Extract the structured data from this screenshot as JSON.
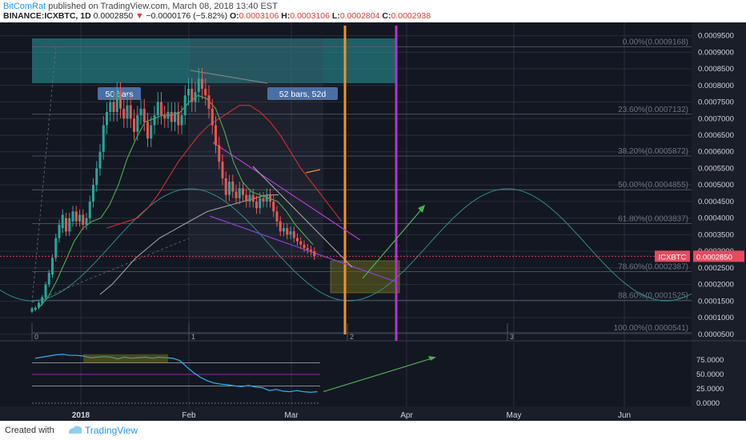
{
  "header": {
    "author": "BitComRat",
    "published": "published on TradingView.com, March 08, 2018 13:40 EST",
    "symbol": "BINANCE:ICXBTC, 1D",
    "last": "0.0002850",
    "change": "−0.0000176 (−5.82%)",
    "open_label": "O:",
    "open": "0.0003106",
    "high_label": "H:",
    "high": "0.0003106",
    "low_label": "L:",
    "low": "0.0002804",
    "close_label": "C:",
    "close": "0.0002938"
  },
  "footer": {
    "created_with": "Created with",
    "brand": "TradingView"
  },
  "colors": {
    "background": "#131722",
    "grid": "#2a2e39",
    "up": "#26a69a",
    "down": "#ef5350",
    "orange": "#f0932b",
    "magenta": "#b336c9",
    "teal_zone": "#2a9a9f",
    "price_tag": "#e84a5f"
  },
  "chart_data": [
    {
      "type": "line",
      "symbol": "ICXBTC",
      "x_ticks": [
        "2018",
        "Feb",
        "Mar",
        "Apr",
        "May",
        "Jun"
      ],
      "y_ticks": [
        "0.0009500",
        "0.0009000",
        "0.0008500",
        "0.0008000",
        "0.0007500",
        "0.0007000",
        "0.0006500",
        "0.0006000",
        "0.0005500",
        "0.0005000",
        "0.0004500",
        "0.0004000",
        "0.0003500",
        "0.0003000",
        "0.0002500",
        "0.0002000",
        "0.0001500",
        "0.0001000",
        "0.0000500"
      ],
      "ylim": [
        3.5e-05,
        0.00099
      ],
      "fibonacci": [
        {
          "label": "0.00%(0.0009168)",
          "value": 0.0009168
        },
        {
          "label": "23.60%(0.0007132)",
          "value": 0.0007132
        },
        {
          "label": "38.20%(0.0005872)",
          "value": 0.0005872
        },
        {
          "label": "50.00%(0.0004855)",
          "value": 0.0004855
        },
        {
          "label": "61.80%(0.0003837)",
          "value": 0.0003837
        },
        {
          "label": "78.60%(0.0002387)",
          "value": 0.0002387
        },
        {
          "label": "88.60%(0.0001525)",
          "value": 0.0001525
        },
        {
          "label": "100.00%(0.0000541)",
          "value": 5.41e-05
        }
      ],
      "annotations": [
        "50 bars",
        "52 bars, 52d"
      ],
      "cycle_labels": [
        "0",
        "1",
        "2",
        "3"
      ],
      "last_price_label": "ICXBTC",
      "last_price": "0.0002850",
      "last_price_value": 0.000285,
      "candles": [
        [
          0.000118,
          0.000128
        ],
        [
          0.000124,
          0.00013
        ],
        [
          0.00013,
          0.000145
        ],
        [
          0.000142,
          0.000162
        ],
        [
          0.00016,
          0.0002
        ],
        [
          0.0002,
          0.000235
        ],
        [
          0.00023,
          0.00028
        ],
        [
          0.00028,
          0.00034
        ],
        [
          0.00034,
          0.00038
        ],
        [
          0.00037,
          0.00041
        ],
        [
          0.0004,
          0.00036
        ],
        [
          0.00036,
          0.0004
        ],
        [
          0.00039,
          0.00042
        ],
        [
          0.00042,
          0.00039
        ],
        [
          0.00039,
          0.00041
        ],
        [
          0.00041,
          0.00038
        ],
        [
          0.00038,
          0.0004
        ],
        [
          0.0004,
          0.00045
        ],
        [
          0.00045,
          0.0005
        ],
        [
          0.0005,
          0.00055
        ],
        [
          0.00055,
          0.0006
        ],
        [
          0.0006,
          0.00068
        ],
        [
          0.00068,
          0.00072
        ],
        [
          0.00072,
          0.00075
        ],
        [
          0.00075,
          0.00072
        ],
        [
          0.00072,
          0.00078
        ],
        [
          0.00078,
          0.00073
        ],
        [
          0.00073,
          0.0007
        ],
        [
          0.0007,
          0.00074
        ],
        [
          0.00074,
          0.0007
        ],
        [
          0.0007,
          0.00066
        ],
        [
          0.00066,
          0.00071
        ],
        [
          0.00071,
          0.00073
        ],
        [
          0.00073,
          0.00069
        ],
        [
          0.00069,
          0.00064
        ],
        [
          0.00064,
          0.00068
        ],
        [
          0.00068,
          0.00071
        ],
        [
          0.00071,
          0.00075
        ],
        [
          0.00075,
          0.00071
        ],
        [
          0.00071,
          0.0007
        ],
        [
          0.0007,
          0.00072
        ],
        [
          0.00072,
          0.00069
        ],
        [
          0.00069,
          0.00072
        ],
        [
          0.00072,
          0.00068
        ],
        [
          0.00068,
          0.00071
        ],
        [
          0.00071,
          0.00077
        ],
        [
          0.00077,
          0.00079
        ],
        [
          0.00079,
          0.00075
        ],
        [
          0.00075,
          0.00078
        ],
        [
          0.00078,
          0.00082
        ],
        [
          0.00082,
          0.00079
        ],
        [
          0.00079,
          0.00077
        ],
        [
          0.00077,
          0.00073
        ],
        [
          0.00073,
          0.00068
        ],
        [
          0.00068,
          0.00062
        ],
        [
          0.00062,
          0.00057
        ],
        [
          0.00057,
          0.00052
        ],
        [
          0.00052,
          0.00047
        ],
        [
          0.00047,
          0.00051
        ],
        [
          0.00051,
          0.00048
        ],
        [
          0.00048,
          0.00046
        ],
        [
          0.00046,
          0.00049
        ],
        [
          0.00049,
          0.00047
        ],
        [
          0.00047,
          0.00045
        ],
        [
          0.00045,
          0.00047
        ],
        [
          0.00047,
          0.00045
        ],
        [
          0.00045,
          0.00043
        ],
        [
          0.00043,
          0.00046
        ],
        [
          0.00046,
          0.00045
        ],
        [
          0.00045,
          0.00047
        ],
        [
          0.00047,
          0.00045
        ],
        [
          0.00045,
          0.00042
        ],
        [
          0.00042,
          0.00039
        ],
        [
          0.00039,
          0.00036
        ],
        [
          0.00036,
          0.00037
        ],
        [
          0.00037,
          0.00035
        ],
        [
          0.00035,
          0.00036
        ],
        [
          0.00036,
          0.00034
        ],
        [
          0.00034,
          0.00033
        ],
        [
          0.00033,
          0.00032
        ],
        [
          0.00032,
          0.00031
        ],
        [
          0.00031,
          0.000305
        ],
        [
          0.000305,
          0.0003
        ],
        [
          0.0003,
          0.000285
        ]
      ],
      "ma_fast": [
        0.00013,
        0.00016,
        0.00021,
        0.00027,
        0.00033,
        0.00037,
        0.00039,
        0.0004,
        0.00044,
        0.0005,
        0.00058,
        0.00064,
        0.00069,
        0.0007,
        0.00071,
        0.00071,
        0.00072,
        0.00075,
        0.00077,
        0.00076,
        0.00073,
        0.00066,
        0.00057,
        0.00051,
        0.00048,
        0.00047,
        0.00046,
        0.00045,
        0.00042,
        0.00038,
        0.00035,
        0.00032
      ],
      "ma_slow": [
        0.00037,
        0.00038,
        0.00039,
        0.0004,
        0.00043,
        0.00047,
        0.00052,
        0.00057,
        0.00061,
        0.00065,
        0.00068,
        0.0007,
        0.00072,
        0.00074,
        0.00074,
        0.00072,
        0.00069,
        0.00065,
        0.0006,
        0.00055,
        0.00051,
        0.00047,
        0.00043,
        0.00039
      ],
      "ma_long": [
        0.00017,
        0.0002,
        0.00024,
        0.00028,
        0.00031,
        0.00034,
        0.00036,
        0.00038,
        0.0004,
        0.00042,
        0.00043,
        0.00044,
        0.00045,
        0.00046,
        0.00047,
        0.00047
      ]
    },
    {
      "type": "line",
      "y_ticks": [
        "75.0000",
        "50.0000",
        "25.0000",
        "0.0000"
      ],
      "ylim": [
        0,
        100
      ],
      "levels": [
        70,
        50,
        30
      ],
      "values": [
        78,
        80,
        82,
        84,
        85,
        83,
        83,
        82,
        79,
        80,
        81,
        80,
        77,
        80,
        78,
        79,
        80,
        78,
        80,
        79,
        78,
        74,
        63,
        53,
        45,
        39,
        35,
        33,
        32,
        30,
        29,
        31,
        28,
        27,
        22,
        24,
        21,
        20,
        22,
        20,
        19,
        20
      ]
    }
  ]
}
